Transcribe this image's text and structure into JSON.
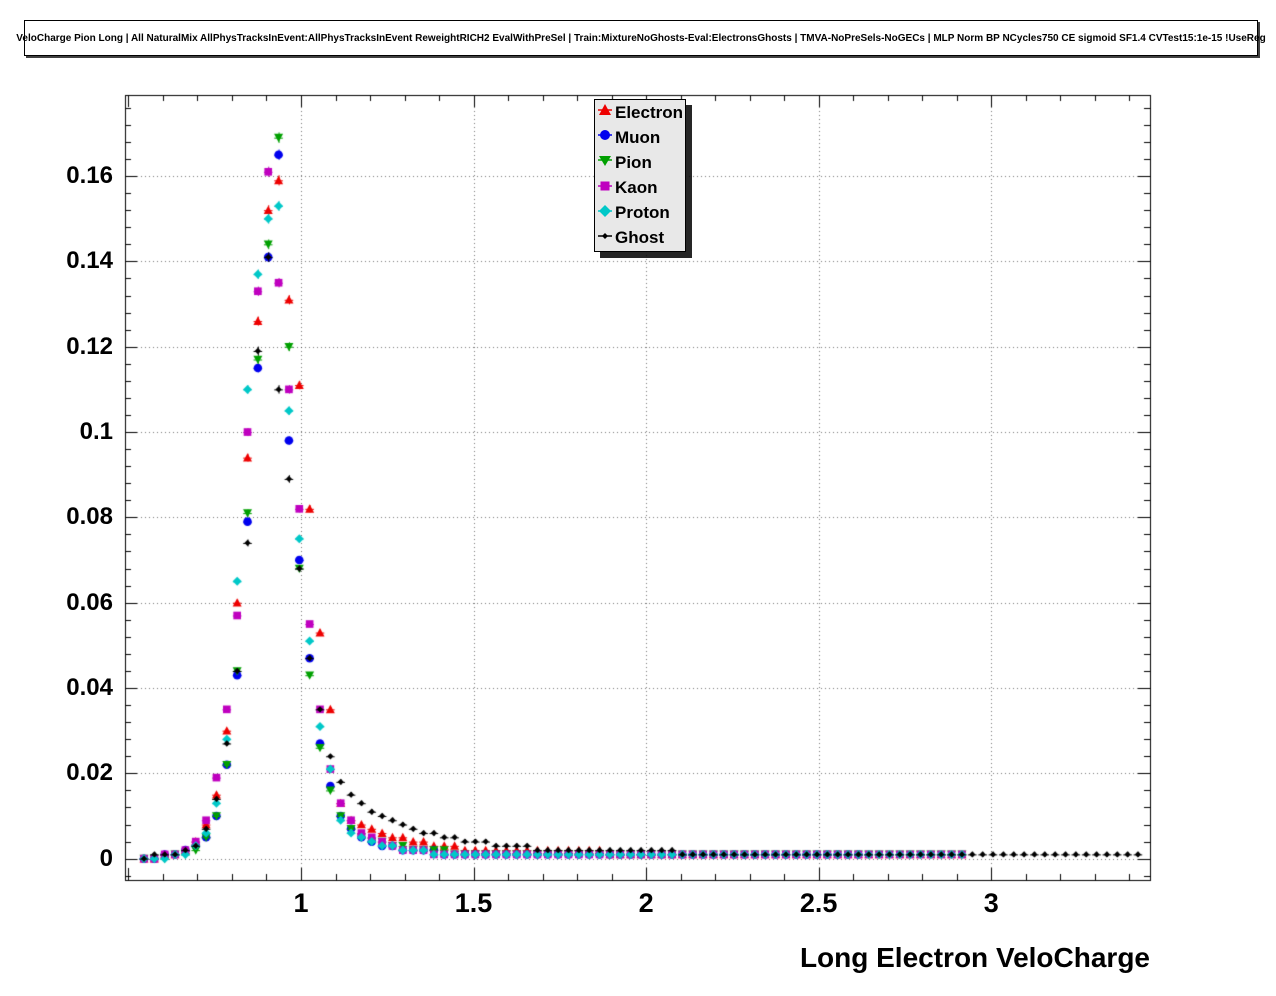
{
  "chart_data": {
    "type": "scatter",
    "title": "VeloCharge Pion Long | All NaturalMix AllPhysTracksInEvent:AllPhysTracksInEvent ReweightRICH2 EvalWithPreSel | Train:MixtureNoGhosts-Eval:ElectronsGhosts | TMVA-NoPreSels-NoGECs | MLP Norm BP NCycles750 CE sigmoid SF1.4 CVTest15:1e-15 !UseReg",
    "xlabel": "Long Electron VeloCharge",
    "ylabel": "",
    "xlim": [
      0.49,
      3.46
    ],
    "ylim": [
      -0.005,
      0.179
    ],
    "grid": true,
    "grid_style": "dotted",
    "legend_position": "top-center",
    "x_ticks": {
      "values": [
        1,
        1.5,
        2,
        2.5,
        3
      ],
      "labels": [
        "1",
        "1.5",
        "2",
        "2.5",
        "3"
      ]
    },
    "y_ticks": {
      "values": [
        0,
        0.02,
        0.04,
        0.06,
        0.08,
        0.1,
        0.12,
        0.14,
        0.16
      ],
      "labels": [
        "0",
        "0.02",
        "0.04",
        "0.06",
        "0.08",
        "0.1",
        "0.12",
        "0.14",
        "0.16"
      ]
    },
    "x": [
      0.545,
      0.575,
      0.605,
      0.635,
      0.665,
      0.695,
      0.725,
      0.755,
      0.785,
      0.815,
      0.845,
      0.875,
      0.905,
      0.935,
      0.965,
      0.995,
      1.025,
      1.055,
      1.085,
      1.115,
      1.145,
      1.175,
      1.205,
      1.235,
      1.265,
      1.295,
      1.325,
      1.355,
      1.385,
      1.415,
      1.445,
      1.475,
      1.505,
      1.535,
      1.565,
      1.595,
      1.625,
      1.655,
      1.685,
      1.715,
      1.745,
      1.775,
      1.805,
      1.835,
      1.865,
      1.895,
      1.925,
      1.955,
      1.985,
      2.015,
      2.045,
      2.075,
      2.105,
      2.135,
      2.165,
      2.195,
      2.225,
      2.255,
      2.285,
      2.315,
      2.345,
      2.375,
      2.405,
      2.435,
      2.465,
      2.495,
      2.525,
      2.555,
      2.585,
      2.615,
      2.645,
      2.675,
      2.705,
      2.735,
      2.765,
      2.795,
      2.825,
      2.855,
      2.885,
      2.915,
      2.945,
      2.975,
      3.005,
      3.035,
      3.065,
      3.095,
      3.125,
      3.155,
      3.185,
      3.215,
      3.245,
      3.275,
      3.305,
      3.335,
      3.365,
      3.395,
      3.425
    ],
    "series": [
      {
        "name": "Electron",
        "color": "#ee0000",
        "marker": "triangle-up",
        "values": [
          0,
          0,
          0.001,
          0.001,
          0.002,
          0.004,
          0.008,
          0.015,
          0.03,
          0.06,
          0.094,
          0.126,
          0.152,
          0.159,
          0.131,
          0.111,
          0.082,
          0.053,
          0.035,
          0.013,
          0.009,
          0.008,
          0.007,
          0.006,
          0.005,
          0.005,
          0.004,
          0.004,
          0.003,
          0.003,
          0.003,
          0.002,
          0.002,
          0.002,
          0.002,
          0.002,
          0.002,
          0.002,
          0.002,
          0.002,
          0.002,
          0.002,
          0.002,
          0.002,
          0.002,
          0.001,
          0.001,
          0.001,
          0.001,
          0.001,
          0.001,
          0.001,
          0.001,
          0.001,
          0.001,
          0.001,
          0.001,
          0.001,
          0.001,
          0.001,
          0.001,
          0.001,
          0.001,
          0.001,
          0.001,
          0.001,
          0.001,
          0.001,
          0.001,
          0.001,
          0.001,
          0.001,
          0.001,
          0.001,
          0.001,
          0.001,
          0.001,
          0.001,
          0.001,
          0.001,
          0,
          0,
          0,
          0,
          0,
          0,
          0,
          0,
          0,
          0,
          0,
          0,
          0,
          0,
          0,
          0,
          0
        ]
      },
      {
        "name": "Muon",
        "color": "#0000ee",
        "marker": "circle",
        "values": [
          0,
          0,
          0.001,
          0.001,
          0.002,
          0.003,
          0.005,
          0.01,
          0.022,
          0.043,
          0.079,
          0.115,
          0.141,
          0.165,
          0.098,
          0.07,
          0.047,
          0.027,
          0.017,
          0.01,
          0.007,
          0.005,
          0.004,
          0.003,
          0.003,
          0.002,
          0.002,
          0.002,
          0.002,
          0.001,
          0.001,
          0.001,
          0.001,
          0.001,
          0.001,
          0.001,
          0.001,
          0.001,
          0.001,
          0.001,
          0.001,
          0.001,
          0.001,
          0.001,
          0.001,
          0.001,
          0.001,
          0.001,
          0.001,
          0.001,
          0.001,
          0.001,
          0.001,
          0.001,
          0.001,
          0.001,
          0.001,
          0.001,
          0.001,
          0.001,
          0.001,
          0.001,
          0.001,
          0.001,
          0.001,
          0.001,
          0.001,
          0.001,
          0.001,
          0.001,
          0,
          0,
          0,
          0,
          0,
          0,
          0,
          0,
          0,
          0,
          0,
          0,
          0,
          0,
          0,
          0,
          0,
          0,
          0,
          0,
          0,
          0,
          0,
          0,
          0,
          0,
          0
        ]
      },
      {
        "name": "Pion",
        "color": "#00a000",
        "marker": "triangle-down",
        "values": [
          0,
          0,
          0,
          0.001,
          0.001,
          0.002,
          0.005,
          0.01,
          0.022,
          0.044,
          0.081,
          0.117,
          0.144,
          0.169,
          0.12,
          0.068,
          0.043,
          0.026,
          0.016,
          0.01,
          0.007,
          0.005,
          0.004,
          0.004,
          0.003,
          0.003,
          0.002,
          0.002,
          0.002,
          0.002,
          0.001,
          0.001,
          0.001,
          0.001,
          0.001,
          0.001,
          0.001,
          0.001,
          0.001,
          0.001,
          0.001,
          0.001,
          0.001,
          0.001,
          0.001,
          0.001,
          0.001,
          0.001,
          0.001,
          0.001,
          0.001,
          0.001,
          0.001,
          0.001,
          0.001,
          0.001,
          0.001,
          0.001,
          0.001,
          0.001,
          0.001,
          0.001,
          0.001,
          0.001,
          0.001,
          0.001,
          0.001,
          0.001,
          0.001,
          0.001,
          0.001,
          0.001,
          0.001,
          0.001,
          0.001,
          0.001,
          0.001,
          0.001,
          0.001,
          0.001,
          0,
          0,
          0,
          0,
          0,
          0,
          0,
          0,
          0,
          0,
          0,
          0,
          0,
          0,
          0,
          0,
          0
        ]
      },
      {
        "name": "Kaon",
        "color": "#bf00bf",
        "marker": "square",
        "values": [
          0,
          0,
          0.001,
          0.001,
          0.002,
          0.004,
          0.009,
          0.019,
          0.035,
          0.057,
          0.1,
          0.133,
          0.161,
          0.135,
          0.11,
          0.082,
          0.055,
          0.035,
          0.021,
          0.013,
          0.009,
          0.006,
          0.005,
          0.004,
          0.003,
          0.002,
          0.002,
          0.002,
          0.001,
          0.001,
          0.001,
          0.001,
          0.001,
          0.001,
          0.001,
          0.001,
          0.001,
          0.001,
          0.001,
          0.001,
          0.001,
          0.001,
          0.001,
          0.001,
          0.001,
          0.001,
          0.001,
          0.001,
          0.001,
          0.001,
          0.001,
          0.001,
          0.001,
          0.001,
          0.001,
          0.001,
          0.001,
          0.001,
          0.001,
          0.001,
          0.001,
          0.001,
          0.001,
          0.001,
          0.001,
          0.001,
          0.001,
          0.001,
          0.001,
          0.001,
          0.001,
          0.001,
          0.001,
          0.001,
          0.001,
          0.001,
          0.001,
          0.001,
          0.001,
          0.001,
          0,
          0,
          0,
          0,
          0,
          0,
          0,
          0,
          0,
          0,
          0,
          0,
          0,
          0,
          0,
          0,
          0
        ]
      },
      {
        "name": "Proton",
        "color": "#00c8c8",
        "marker": "diamond",
        "values": [
          0,
          0,
          0,
          0.001,
          0.001,
          0.003,
          0.006,
          0.013,
          0.028,
          0.065,
          0.11,
          0.137,
          0.15,
          0.153,
          0.105,
          0.075,
          0.051,
          0.031,
          0.021,
          0.009,
          0.006,
          0.005,
          0.004,
          0.003,
          0.003,
          0.002,
          0.002,
          0.002,
          0.001,
          0.001,
          0.001,
          0.001,
          0.001,
          0.001,
          0.001,
          0.001,
          0.001,
          0.001,
          0.001,
          0.001,
          0.001,
          0.001,
          0.001,
          0.001,
          0.001,
          0.001,
          0.001,
          0.001,
          0.001,
          0.001,
          0.001,
          0.001,
          0.001,
          0.001,
          0.001,
          0.001,
          0.001,
          0.001,
          0.001,
          0.001,
          0.001,
          0.001,
          0.001,
          0.001,
          0.001,
          0.001,
          0.001,
          0.001,
          0.001,
          0.001,
          0.001,
          0.001,
          0.001,
          0.001,
          0.001,
          0.001,
          0.001,
          0.001,
          0.001,
          0.001,
          0,
          0,
          0,
          0,
          0,
          0,
          0,
          0,
          0,
          0,
          0,
          0,
          0,
          0,
          0,
          0,
          0
        ]
      },
      {
        "name": "Ghost",
        "color": "#000000",
        "marker": "small-diamond",
        "values": [
          0,
          0.001,
          0.001,
          0.001,
          0.002,
          0.003,
          0.007,
          0.014,
          0.027,
          0.044,
          0.074,
          0.119,
          0.141,
          0.11,
          0.089,
          0.068,
          0.047,
          0.035,
          0.024,
          0.018,
          0.015,
          0.013,
          0.011,
          0.01,
          0.009,
          0.008,
          0.007,
          0.006,
          0.006,
          0.005,
          0.005,
          0.004,
          0.004,
          0.004,
          0.003,
          0.003,
          0.003,
          0.003,
          0.002,
          0.002,
          0.002,
          0.002,
          0.002,
          0.002,
          0.002,
          0.002,
          0.002,
          0.002,
          0.002,
          0.002,
          0.002,
          0.002,
          0.001,
          0.001,
          0.001,
          0.001,
          0.001,
          0.001,
          0.001,
          0.001,
          0.001,
          0.001,
          0.001,
          0.001,
          0.001,
          0.001,
          0.001,
          0.001,
          0.001,
          0.001,
          0.001,
          0.001,
          0.001,
          0.001,
          0.001,
          0.001,
          0.001,
          0.001,
          0.001,
          0.001,
          0.001,
          0.001,
          0.001,
          0.001,
          0.001,
          0.001,
          0.001,
          0.001,
          0.001,
          0.001,
          0.001,
          0.001,
          0.001,
          0.001,
          0.001,
          0.001,
          0.001
        ]
      }
    ]
  }
}
